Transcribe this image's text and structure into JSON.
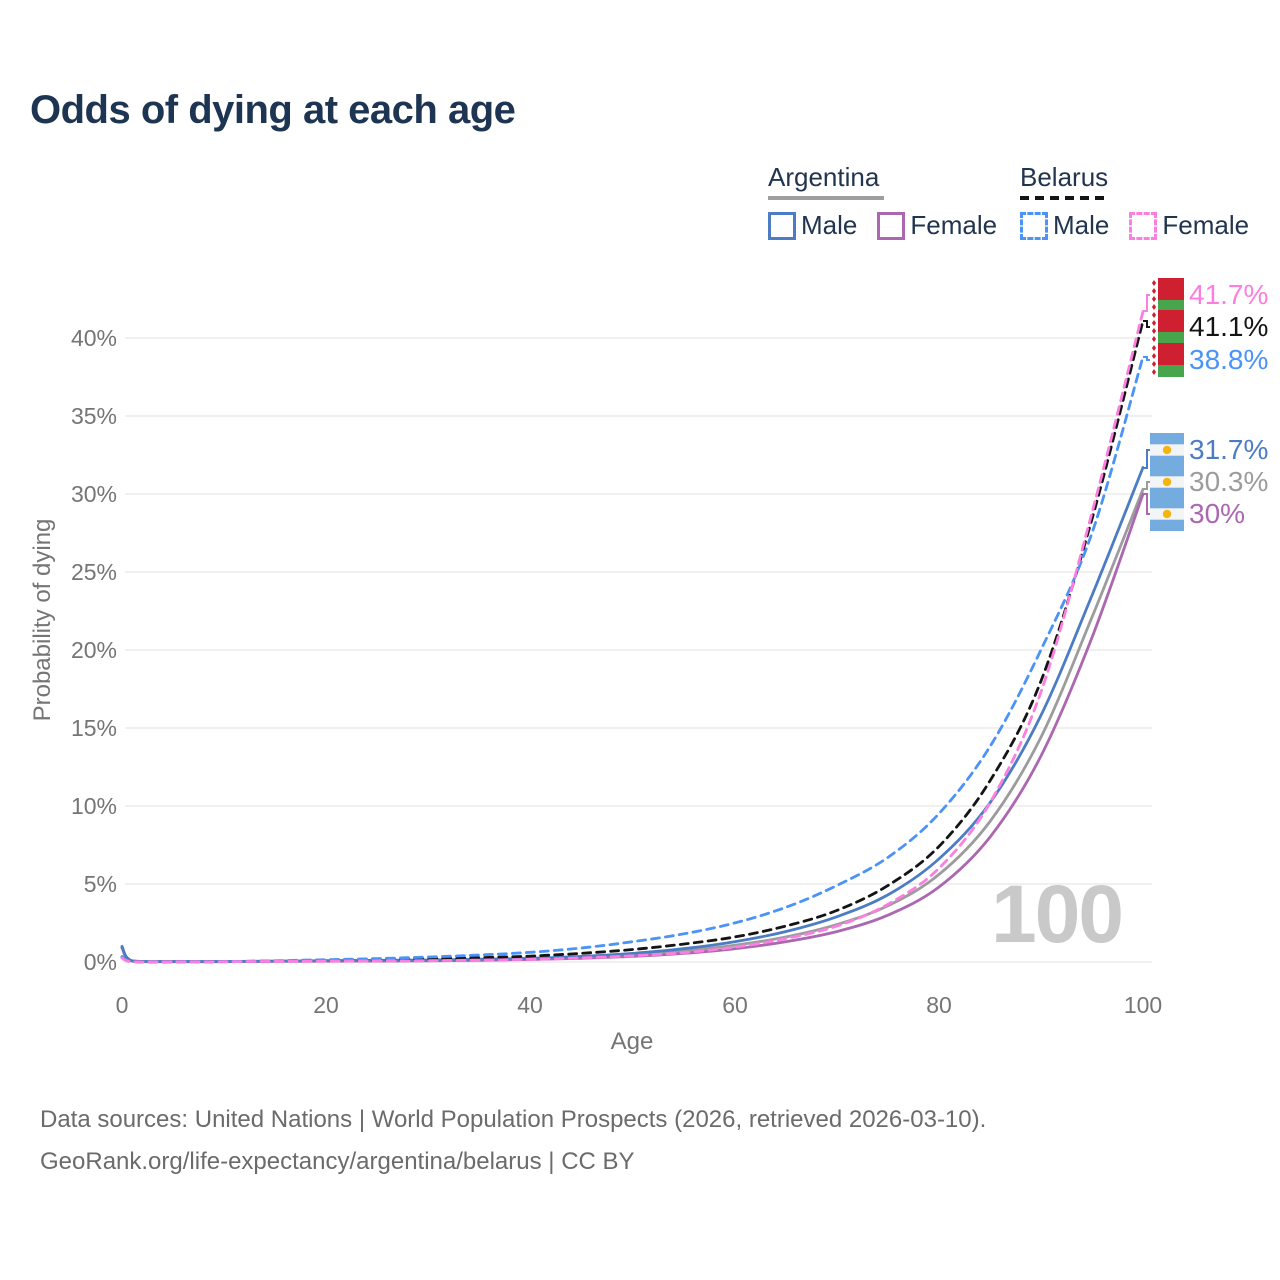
{
  "title": "Odds of dying at each age",
  "legend": {
    "argentina": {
      "label": "Argentina",
      "male": "Male",
      "female": "Female"
    },
    "belarus": {
      "label": "Belarus",
      "male": "Male",
      "female": "Female"
    }
  },
  "colors": {
    "argentina_male": "#4b7cc4",
    "argentina_female": "#ab67b0",
    "argentina_all": "#9c9c9c",
    "belarus_male": "#4b93f7",
    "belarus_female": "#fb7ee0",
    "belarus_all": "#141414",
    "title": "#1d3553",
    "axis_text": "#757575",
    "grid": "#ececec",
    "watermark": "#c9c9c9"
  },
  "chart_data": {
    "type": "line",
    "title": "Odds of dying at each age",
    "xlabel": "Age",
    "ylabel": "Probability of dying",
    "xlim": [
      0,
      100
    ],
    "ylim_percent": [
      0,
      43
    ],
    "grid": "horizontal-only",
    "x_ticks": [
      "0",
      "20",
      "40",
      "60",
      "80",
      "100"
    ],
    "y_ticks": [
      "0%",
      "5%",
      "10%",
      "15%",
      "20%",
      "25%",
      "30%",
      "35%",
      "40%"
    ],
    "age_counter": "100",
    "legend_position": "top-right",
    "series": [
      {
        "name": "Argentina Male",
        "color": "#4b7cc4",
        "dashed": false,
        "end_label": "31.7%",
        "points": [
          [
            0,
            1.0
          ],
          [
            1,
            0.07
          ],
          [
            5,
            0.03
          ],
          [
            10,
            0.03
          ],
          [
            15,
            0.06
          ],
          [
            20,
            0.09
          ],
          [
            25,
            0.11
          ],
          [
            30,
            0.13
          ],
          [
            35,
            0.17
          ],
          [
            40,
            0.24
          ],
          [
            45,
            0.36
          ],
          [
            50,
            0.55
          ],
          [
            55,
            0.85
          ],
          [
            60,
            1.3
          ],
          [
            65,
            1.95
          ],
          [
            70,
            2.9
          ],
          [
            75,
            4.3
          ],
          [
            80,
            6.6
          ],
          [
            85,
            10.2
          ],
          [
            90,
            15.8
          ],
          [
            95,
            23.5
          ],
          [
            100,
            31.7
          ]
        ]
      },
      {
        "name": "Argentina Female",
        "color": "#ab67b0",
        "dashed": false,
        "end_label": "30%",
        "points": [
          [
            0,
            0.9
          ],
          [
            1,
            0.06
          ],
          [
            5,
            0.02
          ],
          [
            10,
            0.02
          ],
          [
            15,
            0.04
          ],
          [
            20,
            0.05
          ],
          [
            25,
            0.06
          ],
          [
            30,
            0.08
          ],
          [
            35,
            0.11
          ],
          [
            40,
            0.16
          ],
          [
            45,
            0.24
          ],
          [
            50,
            0.36
          ],
          [
            55,
            0.55
          ],
          [
            60,
            0.85
          ],
          [
            65,
            1.3
          ],
          [
            70,
            1.95
          ],
          [
            75,
            3.0
          ],
          [
            80,
            4.8
          ],
          [
            85,
            8.0
          ],
          [
            90,
            13.2
          ],
          [
            95,
            20.8
          ],
          [
            100,
            30.0
          ]
        ]
      },
      {
        "name": "Argentina Both sexes",
        "color": "#9c9c9c",
        "dashed": false,
        "end_label": "30.3%",
        "points": [
          [
            0,
            0.95
          ],
          [
            1,
            0.065
          ],
          [
            5,
            0.025
          ],
          [
            10,
            0.025
          ],
          [
            15,
            0.05
          ],
          [
            20,
            0.07
          ],
          [
            25,
            0.085
          ],
          [
            30,
            0.105
          ],
          [
            35,
            0.14
          ],
          [
            40,
            0.2
          ],
          [
            45,
            0.3
          ],
          [
            50,
            0.45
          ],
          [
            55,
            0.7
          ],
          [
            60,
            1.07
          ],
          [
            65,
            1.6
          ],
          [
            70,
            2.4
          ],
          [
            75,
            3.6
          ],
          [
            80,
            5.6
          ],
          [
            85,
            9.0
          ],
          [
            90,
            14.4
          ],
          [
            95,
            22.1
          ],
          [
            100,
            30.3
          ]
        ]
      },
      {
        "name": "Belarus Male",
        "color": "#4b93f7",
        "dashed": true,
        "end_label": "38.8%",
        "points": [
          [
            0,
            0.35
          ],
          [
            1,
            0.03
          ],
          [
            5,
            0.02
          ],
          [
            10,
            0.03
          ],
          [
            15,
            0.08
          ],
          [
            20,
            0.15
          ],
          [
            25,
            0.22
          ],
          [
            30,
            0.32
          ],
          [
            35,
            0.45
          ],
          [
            40,
            0.62
          ],
          [
            45,
            0.9
          ],
          [
            50,
            1.3
          ],
          [
            55,
            1.8
          ],
          [
            60,
            2.5
          ],
          [
            65,
            3.5
          ],
          [
            70,
            4.9
          ],
          [
            75,
            6.7
          ],
          [
            80,
            9.5
          ],
          [
            85,
            13.8
          ],
          [
            90,
            20.0
          ],
          [
            95,
            27.5
          ],
          [
            100,
            38.8
          ]
        ]
      },
      {
        "name": "Belarus Female",
        "color": "#fb7ee0",
        "dashed": true,
        "end_label": "41.7%",
        "points": [
          [
            0,
            0.25
          ],
          [
            1,
            0.02
          ],
          [
            5,
            0.01
          ],
          [
            10,
            0.02
          ],
          [
            15,
            0.04
          ],
          [
            20,
            0.05
          ],
          [
            25,
            0.07
          ],
          [
            30,
            0.09
          ],
          [
            35,
            0.12
          ],
          [
            40,
            0.17
          ],
          [
            45,
            0.26
          ],
          [
            50,
            0.4
          ],
          [
            55,
            0.6
          ],
          [
            60,
            0.95
          ],
          [
            65,
            1.5
          ],
          [
            70,
            2.3
          ],
          [
            75,
            3.7
          ],
          [
            80,
            6.0
          ],
          [
            85,
            10.2
          ],
          [
            90,
            17.3
          ],
          [
            95,
            28.8
          ],
          [
            100,
            41.7
          ]
        ]
      },
      {
        "name": "Belarus Both sexes",
        "color": "#141414",
        "dashed": true,
        "end_label": "41.1%",
        "points": [
          [
            0,
            0.3
          ],
          [
            1,
            0.025
          ],
          [
            5,
            0.015
          ],
          [
            10,
            0.025
          ],
          [
            15,
            0.06
          ],
          [
            20,
            0.1
          ],
          [
            25,
            0.14
          ],
          [
            30,
            0.2
          ],
          [
            35,
            0.28
          ],
          [
            40,
            0.38
          ],
          [
            45,
            0.56
          ],
          [
            50,
            0.8
          ],
          [
            55,
            1.15
          ],
          [
            60,
            1.6
          ],
          [
            65,
            2.3
          ],
          [
            70,
            3.3
          ],
          [
            75,
            4.9
          ],
          [
            80,
            7.4
          ],
          [
            85,
            11.6
          ],
          [
            90,
            18.0
          ],
          [
            95,
            28.4
          ],
          [
            100,
            41.1
          ]
        ]
      }
    ]
  },
  "footer": {
    "line1": "Data sources: United Nations | World Population Prospects (2026, retrieved 2026-03-10).",
    "line2": "GeoRank.org/life-expectancy/argentina/belarus | CC BY"
  }
}
